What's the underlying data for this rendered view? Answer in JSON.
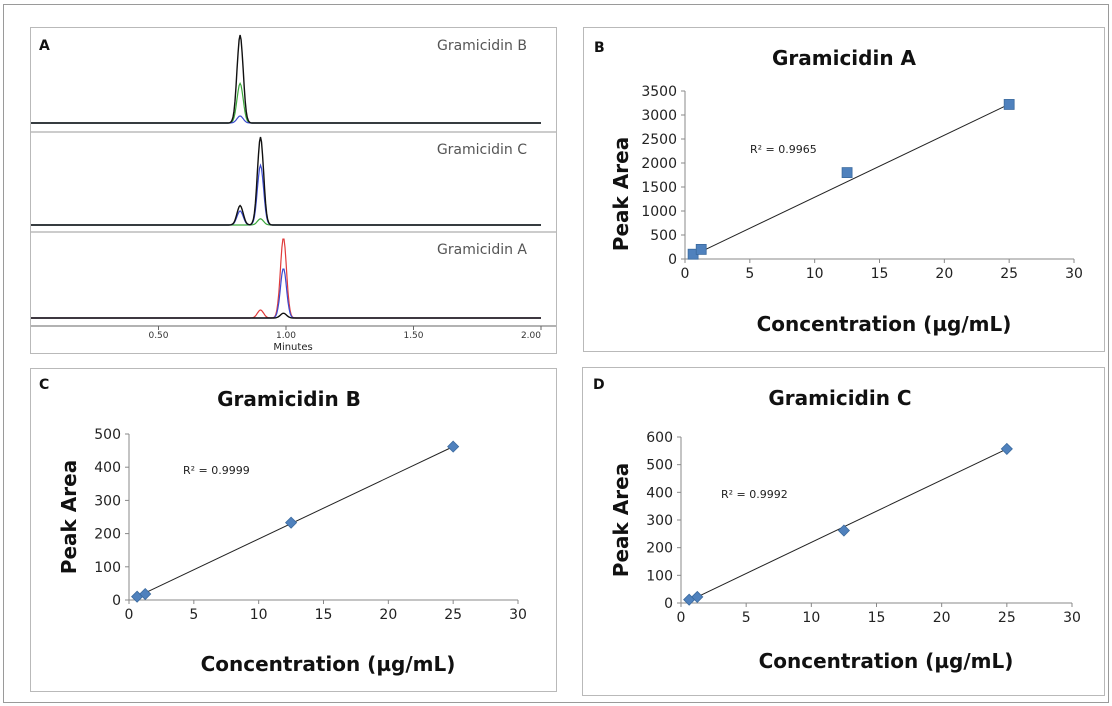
{
  "chart_data": [
    {
      "panel": "A",
      "type": "line",
      "traces": [
        {
          "name": "Gramicidin B",
          "peaks": [
            {
              "x": 0.82,
              "heights": {
                "black": 1.0,
                "green": 0.45,
                "blue": 0.08
              }
            }
          ]
        },
        {
          "name": "Gramicidin C",
          "peaks": [
            {
              "x": 0.82,
              "heights": {
                "black": 0.22,
                "blue": 0.16
              }
            },
            {
              "x": 0.9,
              "heights": {
                "black": 1.0,
                "blue": 0.68,
                "green": 0.07
              }
            }
          ]
        },
        {
          "name": "Gramicidin A",
          "peaks": [
            {
              "x": 0.9,
              "heights": {
                "red": 0.1
              }
            },
            {
              "x": 0.99,
              "heights": {
                "red": 1.0,
                "blue": 0.62,
                "black": 0.06
              }
            }
          ]
        }
      ],
      "x_ticks": [
        "0.50",
        "1.00",
        "1.50",
        "2.00"
      ],
      "xlabel": "Minutes",
      "xlim": [
        0,
        2.0
      ]
    },
    {
      "panel": "B",
      "type": "scatter",
      "title": "Gramicidin A",
      "xlabel": "Concentration (µg/mL)",
      "ylabel": "Peak Area",
      "marker": "square",
      "color": "#4f81bd",
      "x": [
        0.625,
        1.25,
        12.5,
        25
      ],
      "y": [
        100,
        200,
        1800,
        3220
      ],
      "trendline": [
        [
          0.625,
          75
        ],
        [
          25,
          3225
        ]
      ],
      "r2_label": "R² = 0.9965",
      "xlim": [
        0,
        30
      ],
      "ylim": [
        0,
        3500
      ],
      "x_ticks": [
        "0",
        "5",
        "10",
        "15",
        "20",
        "25",
        "30"
      ],
      "y_ticks": [
        "0",
        "500",
        "1000",
        "1500",
        "2000",
        "2500",
        "3000",
        "3500"
      ]
    },
    {
      "panel": "C",
      "type": "scatter",
      "title": "Gramicidin B",
      "xlabel": "Concentration (µg/mL)",
      "ylabel": "Peak Area",
      "marker": "diamond",
      "color": "#4f81bd",
      "x": [
        0.625,
        1.25,
        12.5,
        25
      ],
      "y": [
        10,
        18,
        233,
        462
      ],
      "trendline": [
        [
          0.625,
          10
        ],
        [
          25,
          462
        ]
      ],
      "r2_label": "R² = 0.9999",
      "xlim": [
        0,
        30
      ],
      "ylim": [
        0,
        500
      ],
      "x_ticks": [
        "0",
        "5",
        "10",
        "15",
        "20",
        "25",
        "30"
      ],
      "y_ticks": [
        "0",
        "100",
        "200",
        "300",
        "400",
        "500"
      ]
    },
    {
      "panel": "D",
      "type": "scatter",
      "title": "Gramicidin C",
      "xlabel": "Concentration (µg/mL)",
      "ylabel": "Peak Area",
      "marker": "diamond",
      "color": "#4f81bd",
      "x": [
        0.625,
        1.25,
        12.5,
        25
      ],
      "y": [
        12,
        22,
        262,
        557
      ],
      "trendline": [
        [
          0.625,
          8
        ],
        [
          25,
          557
        ]
      ],
      "r2_label": "R² = 0.9992",
      "xlim": [
        0,
        30
      ],
      "ylim": [
        0,
        600
      ],
      "x_ticks": [
        "0",
        "5",
        "10",
        "15",
        "20",
        "25",
        "30"
      ],
      "y_ticks": [
        "0",
        "100",
        "200",
        "300",
        "400",
        "500",
        "600"
      ]
    }
  ]
}
